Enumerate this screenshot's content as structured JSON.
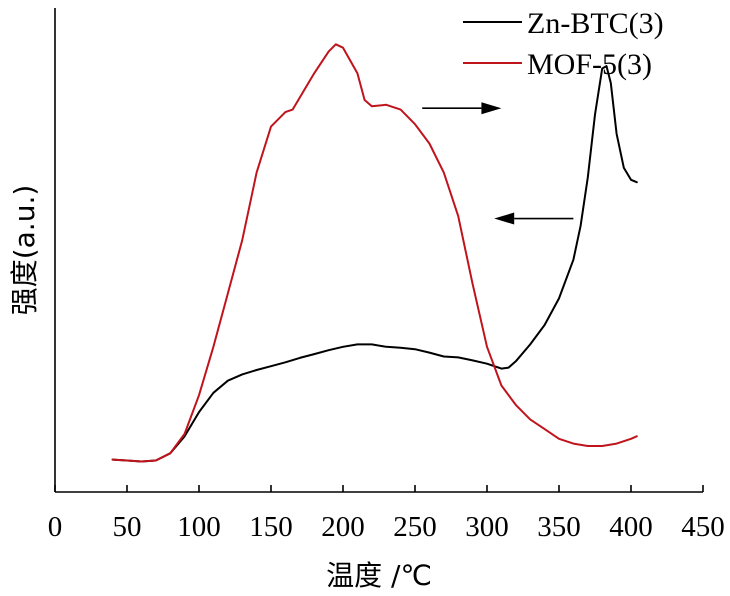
{
  "chart_data": {
    "type": "line",
    "xlabel": "温度 /℃",
    "ylabel": "强度(a.u.)",
    "xlim": [
      0,
      450
    ],
    "ylim": [
      0,
      1
    ],
    "xticks": [
      0,
      50,
      100,
      150,
      200,
      250,
      300,
      350,
      400,
      450
    ],
    "grid": false,
    "legend_position": "top-right",
    "series": [
      {
        "name": "Zn-BTC(3)",
        "color": "#000000",
        "points": [
          [
            40,
            0.067
          ],
          [
            50,
            0.065
          ],
          [
            60,
            0.063
          ],
          [
            70,
            0.065
          ],
          [
            80,
            0.08
          ],
          [
            90,
            0.115
          ],
          [
            100,
            0.165
          ],
          [
            110,
            0.205
          ],
          [
            120,
            0.23
          ],
          [
            130,
            0.243
          ],
          [
            140,
            0.252
          ],
          [
            150,
            0.26
          ],
          [
            160,
            0.268
          ],
          [
            170,
            0.277
          ],
          [
            180,
            0.285
          ],
          [
            190,
            0.293
          ],
          [
            200,
            0.3
          ],
          [
            210,
            0.305
          ],
          [
            220,
            0.305
          ],
          [
            230,
            0.3
          ],
          [
            240,
            0.298
          ],
          [
            250,
            0.295
          ],
          [
            260,
            0.288
          ],
          [
            270,
            0.28
          ],
          [
            280,
            0.278
          ],
          [
            290,
            0.272
          ],
          [
            300,
            0.265
          ],
          [
            310,
            0.255
          ],
          [
            315,
            0.257
          ],
          [
            320,
            0.27
          ],
          [
            330,
            0.305
          ],
          [
            340,
            0.345
          ],
          [
            350,
            0.4
          ],
          [
            360,
            0.48
          ],
          [
            365,
            0.55
          ],
          [
            370,
            0.65
          ],
          [
            375,
            0.78
          ],
          [
            380,
            0.875
          ],
          [
            383,
            0.88
          ],
          [
            386,
            0.845
          ],
          [
            390,
            0.74
          ],
          [
            395,
            0.67
          ],
          [
            400,
            0.645
          ],
          [
            404,
            0.64
          ]
        ]
      },
      {
        "name": "MOF-5(3)",
        "color": "#c0141c",
        "points": [
          [
            40,
            0.067
          ],
          [
            50,
            0.065
          ],
          [
            60,
            0.063
          ],
          [
            70,
            0.065
          ],
          [
            80,
            0.08
          ],
          [
            90,
            0.12
          ],
          [
            100,
            0.2
          ],
          [
            110,
            0.3
          ],
          [
            120,
            0.41
          ],
          [
            130,
            0.52
          ],
          [
            140,
            0.66
          ],
          [
            150,
            0.755
          ],
          [
            160,
            0.785
          ],
          [
            165,
            0.79
          ],
          [
            170,
            0.815
          ],
          [
            180,
            0.865
          ],
          [
            190,
            0.91
          ],
          [
            195,
            0.925
          ],
          [
            200,
            0.918
          ],
          [
            210,
            0.865
          ],
          [
            215,
            0.81
          ],
          [
            220,
            0.797
          ],
          [
            230,
            0.8
          ],
          [
            240,
            0.79
          ],
          [
            250,
            0.76
          ],
          [
            260,
            0.72
          ],
          [
            270,
            0.66
          ],
          [
            280,
            0.57
          ],
          [
            290,
            0.43
          ],
          [
            300,
            0.3
          ],
          [
            310,
            0.22
          ],
          [
            320,
            0.18
          ],
          [
            330,
            0.15
          ],
          [
            340,
            0.13
          ],
          [
            350,
            0.11
          ],
          [
            360,
            0.1
          ],
          [
            370,
            0.095
          ],
          [
            380,
            0.095
          ],
          [
            390,
            0.1
          ],
          [
            400,
            0.11
          ],
          [
            404,
            0.115
          ]
        ]
      }
    ],
    "arrows": [
      {
        "direction": "right",
        "from": [
          255,
          0.793
        ],
        "to": [
          310,
          0.793
        ]
      },
      {
        "direction": "left",
        "from": [
          360,
          0.565
        ],
        "to": [
          305,
          0.565
        ]
      }
    ]
  }
}
